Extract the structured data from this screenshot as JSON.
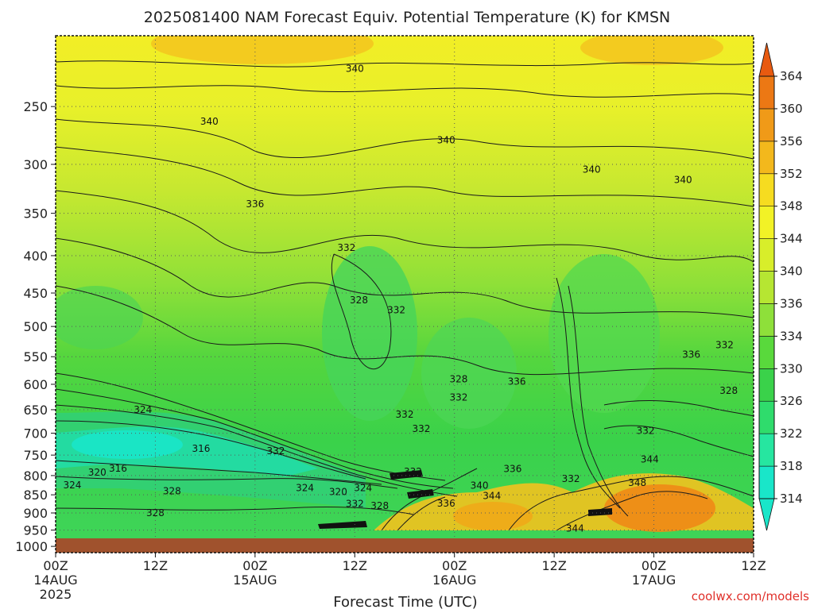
{
  "chart_data": {
    "type": "heatmap",
    "title": "2025081400 NAM Forecast Equiv. Potential Temperature (K) for KMSN",
    "xlabel": "Forecast Time (UTC)",
    "ylabel": "",
    "x_ticks": [
      {
        "hours": 0,
        "label": "00Z",
        "sub1": "14AUG",
        "sub2": "2025"
      },
      {
        "hours": 12,
        "label": "12Z",
        "sub1": "",
        "sub2": ""
      },
      {
        "hours": 24,
        "label": "00Z",
        "sub1": "15AUG",
        "sub2": ""
      },
      {
        "hours": 36,
        "label": "12Z",
        "sub1": "",
        "sub2": ""
      },
      {
        "hours": 48,
        "label": "00Z",
        "sub1": "16AUG",
        "sub2": ""
      },
      {
        "hours": 60,
        "label": "12Z",
        "sub1": "",
        "sub2": ""
      },
      {
        "hours": 72,
        "label": "00Z",
        "sub1": "17AUG",
        "sub2": ""
      },
      {
        "hours": 84,
        "label": "12Z",
        "sub1": "",
        "sub2": ""
      }
    ],
    "xlim_hours": [
      0,
      84
    ],
    "y_scale": "log-pressure (hPa, inverted)",
    "ylim_hpa": [
      1020,
      200
    ],
    "y_ticks": [
      250,
      300,
      350,
      400,
      450,
      500,
      550,
      600,
      650,
      700,
      750,
      800,
      850,
      900,
      950,
      1000
    ],
    "grid": true,
    "colorbar": {
      "units": "K",
      "levels": [
        314,
        318,
        322,
        326,
        330,
        334,
        336,
        340,
        344,
        348,
        352,
        356,
        360,
        364
      ],
      "colors": [
        "#19e6c9",
        "#26e6a0",
        "#2fdc6c",
        "#3ad24a",
        "#59d93c",
        "#8ee03a",
        "#b6e632",
        "#d8ee2a",
        "#f2f226",
        "#f6dc20",
        "#f3b81c",
        "#f09a18",
        "#ec7814",
        "#e85a10"
      ]
    },
    "contour_labels": [
      {
        "hour": 36.0,
        "hpa": 222,
        "value": "340"
      },
      {
        "hour": 18.5,
        "hpa": 262,
        "value": "340"
      },
      {
        "hour": 47.0,
        "hpa": 278,
        "value": "340"
      },
      {
        "hour": 64.5,
        "hpa": 305,
        "value": "340"
      },
      {
        "hour": 24.0,
        "hpa": 340,
        "value": "336"
      },
      {
        "hour": 35.0,
        "hpa": 390,
        "value": "332"
      },
      {
        "hour": 36.5,
        "hpa": 460,
        "value": "328"
      },
      {
        "hour": 41.0,
        "hpa": 475,
        "value": "332"
      },
      {
        "hour": 48.5,
        "hpa": 590,
        "value": "328"
      },
      {
        "hour": 48.5,
        "hpa": 625,
        "value": "332"
      },
      {
        "hour": 55.5,
        "hpa": 595,
        "value": "336"
      },
      {
        "hour": 42.0,
        "hpa": 660,
        "value": "332"
      },
      {
        "hour": 44.0,
        "hpa": 690,
        "value": "332"
      },
      {
        "hour": 10.5,
        "hpa": 650,
        "value": "324"
      },
      {
        "hour": 17.5,
        "hpa": 735,
        "value": "316"
      },
      {
        "hour": 26.5,
        "hpa": 740,
        "value": "332"
      },
      {
        "hour": 5.0,
        "hpa": 792,
        "value": "320"
      },
      {
        "hour": 7.5,
        "hpa": 782,
        "value": "316"
      },
      {
        "hour": 2.0,
        "hpa": 825,
        "value": "324"
      },
      {
        "hour": 14.0,
        "hpa": 840,
        "value": "328"
      },
      {
        "hour": 12.0,
        "hpa": 900,
        "value": "328"
      },
      {
        "hour": 30.0,
        "hpa": 832,
        "value": "324"
      },
      {
        "hour": 34.0,
        "hpa": 842,
        "value": "320"
      },
      {
        "hour": 37.0,
        "hpa": 832,
        "value": "324"
      },
      {
        "hour": 43.0,
        "hpa": 790,
        "value": "332"
      },
      {
        "hour": 36.0,
        "hpa": 875,
        "value": "332"
      },
      {
        "hour": 39.0,
        "hpa": 880,
        "value": "328"
      },
      {
        "hour": 47.0,
        "hpa": 873,
        "value": "336"
      },
      {
        "hour": 51.0,
        "hpa": 826,
        "value": "340"
      },
      {
        "hour": 52.5,
        "hpa": 853,
        "value": "344"
      },
      {
        "hour": 55.0,
        "hpa": 783,
        "value": "336"
      },
      {
        "hour": 62.0,
        "hpa": 808,
        "value": "332"
      },
      {
        "hour": 62.5,
        "hpa": 945,
        "value": "344"
      },
      {
        "hour": 70.0,
        "hpa": 818,
        "value": "348"
      },
      {
        "hour": 71.0,
        "hpa": 695,
        "value": "332"
      },
      {
        "hour": 71.5,
        "hpa": 760,
        "value": "344"
      },
      {
        "hour": 76.5,
        "hpa": 546,
        "value": "336"
      },
      {
        "hour": 80.5,
        "hpa": 530,
        "value": "332"
      },
      {
        "hour": 81.0,
        "hpa": 612,
        "value": "328"
      },
      {
        "hour": 75.5,
        "hpa": 315,
        "value": "340"
      }
    ]
  },
  "credit": "coolwx.com/models"
}
